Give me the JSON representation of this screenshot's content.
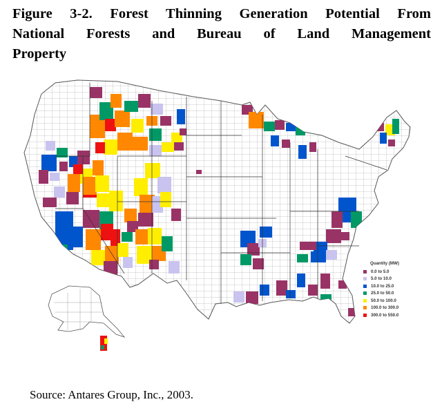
{
  "figure": {
    "title_line1": "Figure 3-2. Forest Thinning Generation Potential From",
    "title_line2": "National Forests and Bureau of Land Management",
    "title_line3": "Property"
  },
  "legend": {
    "title": "Quantity (MW)",
    "items": [
      {
        "label": "0.0 to 5.0",
        "color": "#993366"
      },
      {
        "label": "5.0 to 10.0",
        "color": "#c9c3ef"
      },
      {
        "label": "10.0 to 25.0",
        "color": "#0055cc"
      },
      {
        "label": "25.0 to 50.0",
        "color": "#009966"
      },
      {
        "label": "50.0 to 100.0",
        "color": "#ffee00"
      },
      {
        "label": "100.0 to 300.0",
        "color": "#ff8800"
      },
      {
        "label": "300.0 to 550.0",
        "color": "#ee1111"
      }
    ]
  },
  "source": "Source: Antares Group, Inc., 2003."
}
